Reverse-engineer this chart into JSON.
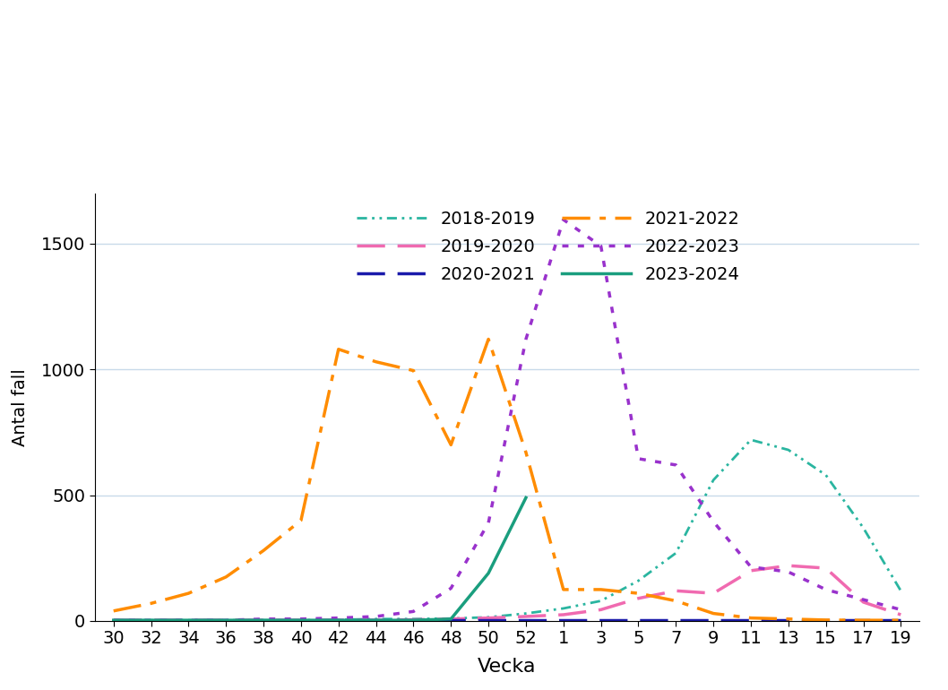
{
  "xlabel": "Vecka",
  "ylabel": "Antal fall",
  "x_tick_labels": [
    "30",
    "32",
    "34",
    "36",
    "38",
    "40",
    "42",
    "44",
    "46",
    "48",
    "50",
    "52",
    "1",
    "3",
    "5",
    "7",
    "9",
    "11",
    "13",
    "15",
    "17",
    "19"
  ],
  "ylim": [
    0,
    1700
  ],
  "yticks": [
    0,
    500,
    1000,
    1500
  ],
  "background_color": "#ffffff",
  "grid_color": "#c8daea",
  "series": {
    "2018-2019": {
      "color": "#2ab5a0",
      "lw": 2.0,
      "ls_key": "dashdotdot",
      "values": [
        3,
        3,
        3,
        3,
        3,
        3,
        5,
        8,
        8,
        10,
        15,
        30,
        50,
        80,
        160,
        270,
        560,
        720,
        680,
        580,
        370,
        120
      ]
    },
    "2019-2020": {
      "color": "#f06ab0",
      "lw": 2.5,
      "ls_key": "longdash",
      "values": [
        3,
        3,
        3,
        3,
        3,
        3,
        3,
        3,
        5,
        8,
        12,
        18,
        25,
        45,
        90,
        120,
        110,
        200,
        220,
        210,
        75,
        25
      ]
    },
    "2020-2021": {
      "color": "#1a1aaa",
      "lw": 2.5,
      "ls_key": "longdash",
      "values": [
        3,
        3,
        3,
        3,
        3,
        3,
        3,
        3,
        3,
        3,
        3,
        3,
        3,
        3,
        3,
        3,
        3,
        3,
        3,
        3,
        3,
        3
      ]
    },
    "2021-2022": {
      "color": "#ff8c00",
      "lw": 2.5,
      "ls_key": "dashdot",
      "values": [
        40,
        70,
        110,
        175,
        280,
        400,
        1080,
        1030,
        995,
        700,
        1120,
        670,
        125,
        125,
        110,
        80,
        30,
        12,
        8,
        4,
        3,
        3
      ]
    },
    "2022-2023": {
      "color": "#9932cc",
      "lw": 2.5,
      "ls_key": "dotted",
      "values": [
        3,
        3,
        3,
        3,
        8,
        8,
        12,
        18,
        38,
        130,
        390,
        1120,
        1595,
        1490,
        645,
        620,
        395,
        215,
        195,
        125,
        85,
        45
      ]
    },
    "2023-2024": {
      "color": "#1a9e7e",
      "lw": 2.5,
      "ls_key": "solid",
      "values": [
        3,
        3,
        3,
        3,
        3,
        3,
        3,
        3,
        3,
        8,
        190,
        490,
        null,
        null,
        null,
        null,
        null,
        null,
        null,
        null,
        null,
        null
      ]
    }
  },
  "legend_order": [
    "2018-2019",
    "2019-2020",
    "2020-2021",
    "2021-2022",
    "2022-2023",
    "2023-2024"
  ]
}
